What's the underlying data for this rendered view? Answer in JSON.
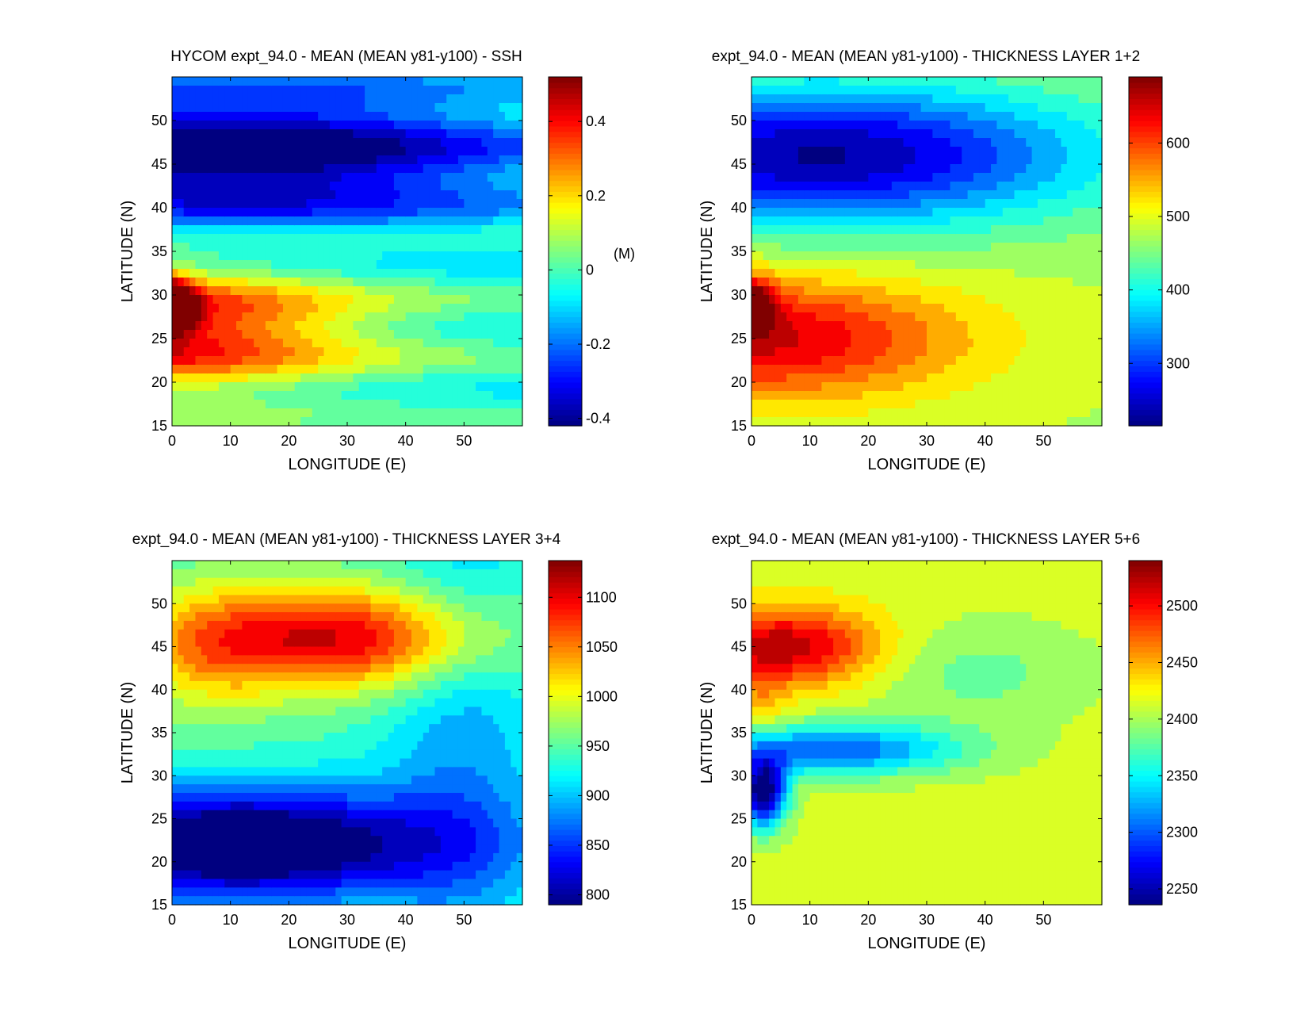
{
  "chart_data": [
    {
      "type": "heatmap",
      "title": "HYCOM expt_94.0 - MEAN (MEAN y81-y100) - SSH",
      "xlabel": "LONGITUDE (E)",
      "ylabel": "LATITUDE (N)",
      "xlim": [
        0,
        60
      ],
      "ylim": [
        15,
        55
      ],
      "xticks": [
        "0",
        "10",
        "20",
        "30",
        "40",
        "50"
      ],
      "yticks": [
        "15",
        "20",
        "25",
        "30",
        "35",
        "40",
        "45",
        "50"
      ],
      "colorbar": {
        "ticks": [
          "0.4",
          "0.2",
          "0",
          "-0.2",
          "-0.4"
        ],
        "tick_values": [
          0.4,
          0.2,
          0,
          -0.2,
          -0.4
        ],
        "range": [
          -0.42,
          0.52
        ],
        "unit": "(M)"
      },
      "pattern": "ssh",
      "levels": 18
    },
    {
      "type": "heatmap",
      "title": "expt_94.0 - MEAN (MEAN y81-y100) - THICKNESS LAYER 1+2",
      "xlabel": "LONGITUDE (E)",
      "ylabel": "LATITUDE (N)",
      "xlim": [
        0,
        60
      ],
      "ylim": [
        15,
        55
      ],
      "xticks": [
        "0",
        "10",
        "20",
        "30",
        "40",
        "50"
      ],
      "yticks": [
        "15",
        "20",
        "25",
        "30",
        "35",
        "40",
        "45",
        "50"
      ],
      "colorbar": {
        "ticks": [
          "600",
          "500",
          "400",
          "300"
        ],
        "tick_values": [
          600,
          500,
          400,
          300
        ],
        "range": [
          215,
          690
        ],
        "unit": ""
      },
      "pattern": "l12",
      "levels": 18
    },
    {
      "type": "heatmap",
      "title": "expt_94.0 - MEAN (MEAN y81-y100) - THICKNESS LAYER 3+4",
      "xlabel": "LONGITUDE (E)",
      "ylabel": "LATITUDE (N)",
      "xlim": [
        0,
        60
      ],
      "ylim": [
        15,
        55
      ],
      "xticks": [
        "0",
        "10",
        "20",
        "30",
        "40",
        "50"
      ],
      "yticks": [
        "15",
        "20",
        "25",
        "30",
        "35",
        "40",
        "45",
        "50"
      ],
      "colorbar": {
        "ticks": [
          "1100",
          "1050",
          "1000",
          "950",
          "900",
          "850",
          "800"
        ],
        "tick_values": [
          1100,
          1050,
          1000,
          950,
          900,
          850,
          800
        ],
        "range": [
          790,
          1137
        ],
        "unit": ""
      },
      "pattern": "l34",
      "levels": 18
    },
    {
      "type": "heatmap",
      "title": "expt_94.0 - MEAN (MEAN y81-y100) - THICKNESS LAYER 5+6",
      "xlabel": "LONGITUDE (E)",
      "ylabel": "LATITUDE (N)",
      "xlim": [
        0,
        60
      ],
      "ylim": [
        15,
        55
      ],
      "xticks": [
        "0",
        "10",
        "20",
        "30",
        "40",
        "50"
      ],
      "yticks": [
        "15",
        "20",
        "25",
        "30",
        "35",
        "40",
        "45",
        "50"
      ],
      "colorbar": {
        "ticks": [
          "2500",
          "2450",
          "2400",
          "2350",
          "2300",
          "2250"
        ],
        "tick_values": [
          2500,
          2450,
          2400,
          2350,
          2300,
          2250
        ],
        "range": [
          2236,
          2540
        ],
        "unit": ""
      },
      "pattern": "l56",
      "levels": 18
    }
  ]
}
